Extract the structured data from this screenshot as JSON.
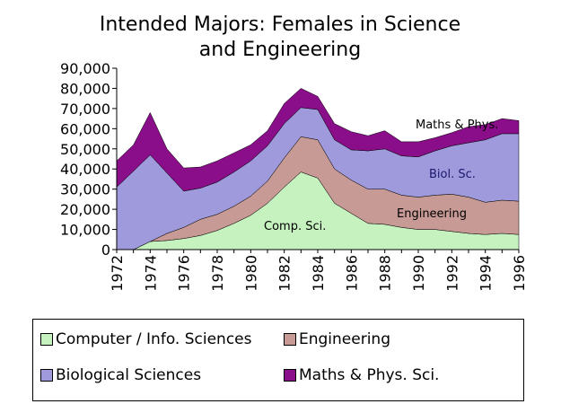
{
  "chart_data": {
    "type": "area",
    "stacked": true,
    "title": "Intended Majors: Females in Science and Engineering",
    "title_lines": [
      "Intended Majors: Females in Science",
      "and Engineering"
    ],
    "xlabel": "",
    "ylabel": "",
    "x": [
      1972,
      1973,
      1974,
      1975,
      1976,
      1977,
      1978,
      1979,
      1980,
      1981,
      1982,
      1983,
      1984,
      1985,
      1986,
      1987,
      1988,
      1989,
      1990,
      1991,
      1992,
      1993,
      1994,
      1995,
      1996
    ],
    "xticks": [
      "1972",
      "1974",
      "1976",
      "1978",
      "1980",
      "1982",
      "1984",
      "1986",
      "1988",
      "1990",
      "1992",
      "1994",
      "1996"
    ],
    "ylim": [
      0,
      90000
    ],
    "yticks": [
      "0",
      "10,000",
      "20,000",
      "30,000",
      "40,000",
      "50,000",
      "60,000",
      "70,000",
      "80,000",
      "90,000"
    ],
    "grid": false,
    "legend_position": "bottom",
    "series": [
      {
        "name": "Computer / Info. Sciences",
        "color": "#c6f2c0",
        "values": [
          0,
          0,
          4000,
          4500,
          5500,
          7000,
          9500,
          13000,
          17000,
          23000,
          31000,
          38500,
          35500,
          23000,
          18000,
          13000,
          12500,
          11000,
          10000,
          10000,
          9000,
          8000,
          7500,
          8000,
          7500
        ]
      },
      {
        "name": "Engineering",
        "color": "#c89a95",
        "values": [
          0,
          0,
          0,
          3500,
          5500,
          8000,
          8000,
          8500,
          9500,
          11000,
          14500,
          17500,
          19000,
          17000,
          16500,
          17000,
          17500,
          16000,
          16000,
          17000,
          18500,
          18000,
          16000,
          16500,
          16500
        ]
      },
      {
        "name": "Biological Sciences",
        "color": "#9e9adc",
        "values": [
          31000,
          39000,
          43000,
          30000,
          18000,
          15500,
          16000,
          17000,
          17500,
          17500,
          17000,
          14500,
          15000,
          14500,
          15000,
          19000,
          20000,
          19500,
          20000,
          22000,
          24000,
          27000,
          31000,
          33000,
          33500
        ]
      },
      {
        "name": "Maths & Phys. Sci.",
        "color": "#8a0e8a",
        "values": [
          13000,
          13000,
          21000,
          12000,
          11500,
          10500,
          10500,
          9500,
          8000,
          7500,
          10000,
          9500,
          6500,
          8000,
          9000,
          7500,
          9000,
          7000,
          7500,
          6500,
          6500,
          8000,
          7500,
          7500,
          6500
        ]
      }
    ],
    "annotations": [
      "Comp. Sci.",
      "Engineering",
      "Biol. Sc.",
      "Maths & Phys."
    ]
  }
}
